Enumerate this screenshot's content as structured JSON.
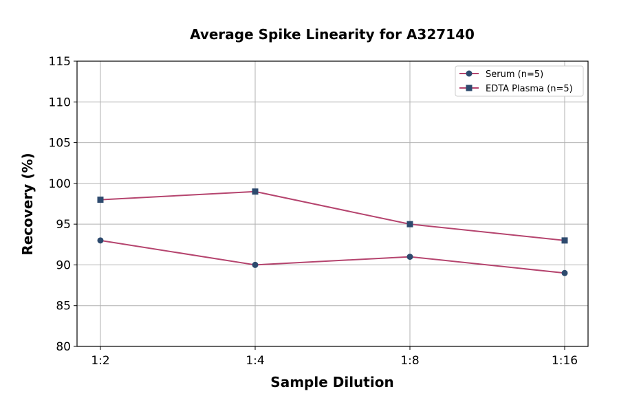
{
  "chart_data": {
    "type": "line",
    "title": "Average Spike Linearity for A327140",
    "xlabel": "Sample Dilution",
    "ylabel": "Recovery (%)",
    "categories": [
      "1:2",
      "1:4",
      "1:8",
      "1:16"
    ],
    "ylim": [
      80,
      115
    ],
    "yticks": [
      80,
      85,
      90,
      95,
      100,
      105,
      110,
      115
    ],
    "grid": true,
    "legend_position": "top-right",
    "series": [
      {
        "name": "Serum (n=5)",
        "values": [
          93,
          90,
          91,
          89
        ],
        "marker": "circle",
        "line_color": "#b5446e",
        "marker_color": "#2d4a6e"
      },
      {
        "name": "EDTA Plasma (n=5)",
        "values": [
          98,
          99,
          95,
          93
        ],
        "marker": "square",
        "line_color": "#b5446e",
        "marker_color": "#2d4a6e"
      }
    ]
  }
}
